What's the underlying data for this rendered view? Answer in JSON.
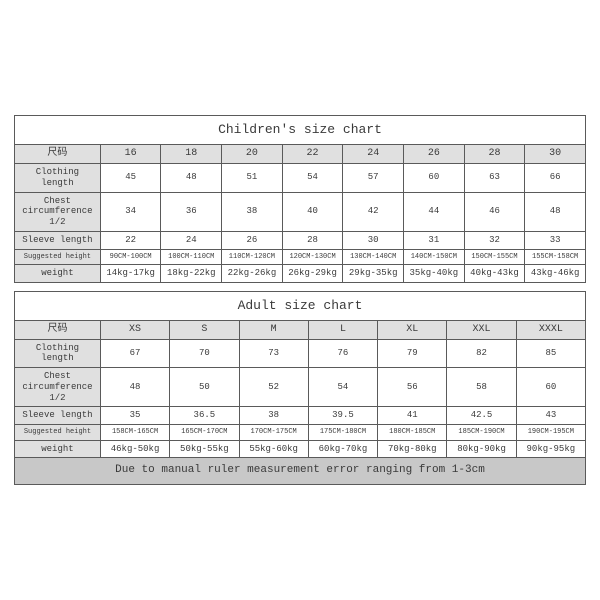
{
  "children": {
    "title": "Children's size chart",
    "row_header_label": "尺码",
    "columns": [
      "16",
      "18",
      "20",
      "22",
      "24",
      "26",
      "28",
      "30"
    ],
    "rows": [
      {
        "label": "Clothing length",
        "values": [
          "45",
          "48",
          "51",
          "54",
          "57",
          "60",
          "63",
          "66"
        ]
      },
      {
        "label": "Chest circumference 1/2",
        "values": [
          "34",
          "36",
          "38",
          "40",
          "42",
          "44",
          "46",
          "48"
        ]
      },
      {
        "label": "Sleeve length",
        "values": [
          "22",
          "24",
          "26",
          "28",
          "30",
          "31",
          "32",
          "33"
        ]
      },
      {
        "label": "Suggested height",
        "values": [
          "90CM-100CM",
          "100CM-110CM",
          "110CM-120CM",
          "120CM-130CM",
          "130CM-140CM",
          "140CM-150CM",
          "150CM-155CM",
          "155CM-158CM"
        ]
      },
      {
        "label": "weight",
        "values": [
          "14kg-17kg",
          "18kg-22kg",
          "22kg-26kg",
          "26kg-29kg",
          "29kg-35kg",
          "35kg-40kg",
          "40kg-43kg",
          "43kg-46kg"
        ]
      }
    ],
    "colors": {
      "border": "#5a5a5a",
      "label_bg": "#e0e0e0",
      "header_bg": "#e0e0e0",
      "text": "#3a3a3a",
      "background": "#ffffff"
    },
    "col_count": 9,
    "label_col_width_pct": 15,
    "data_col_width_pct": 10.6,
    "title_fontsize": 13,
    "cell_fontsize": 9,
    "small_row_fontsize": 7
  },
  "adult": {
    "title": "Adult size chart",
    "row_header_label": "尺码",
    "columns": [
      "XS",
      "S",
      "M",
      "L",
      "XL",
      "XXL",
      "XXXL"
    ],
    "rows": [
      {
        "label": "Clothing length",
        "values": [
          "67",
          "70",
          "73",
          "76",
          "79",
          "82",
          "85"
        ]
      },
      {
        "label": "Chest circumference 1/2",
        "values": [
          "48",
          "50",
          "52",
          "54",
          "56",
          "58",
          "60"
        ]
      },
      {
        "label": "Sleeve length",
        "values": [
          "35",
          "36.5",
          "38",
          "39.5",
          "41",
          "42.5",
          "43"
        ]
      },
      {
        "label": "Suggested height",
        "values": [
          "158CM-165CM",
          "165CM-170CM",
          "170CM-175CM",
          "175CM-180CM",
          "180CM-185CM",
          "185CM-190CM",
          "190CM-195CM"
        ]
      },
      {
        "label": "weight",
        "values": [
          "46kg-50kg",
          "50kg-55kg",
          "55kg-60kg",
          "60kg-70kg",
          "70kg-80kg",
          "80kg-90kg",
          "90kg-95kg"
        ]
      }
    ],
    "note": "Due to manual ruler measurement error ranging from 1-3cm",
    "colors": {
      "border": "#5a5a5a",
      "label_bg": "#e0e0e0",
      "header_bg": "#e0e0e0",
      "note_bg": "#c8c8c8",
      "text": "#3a3a3a",
      "background": "#ffffff"
    },
    "col_count": 8,
    "label_col_width_pct": 15,
    "data_col_width_pct": 12.1,
    "title_fontsize": 13,
    "cell_fontsize": 9,
    "small_row_fontsize": 7,
    "note_fontsize": 11
  }
}
